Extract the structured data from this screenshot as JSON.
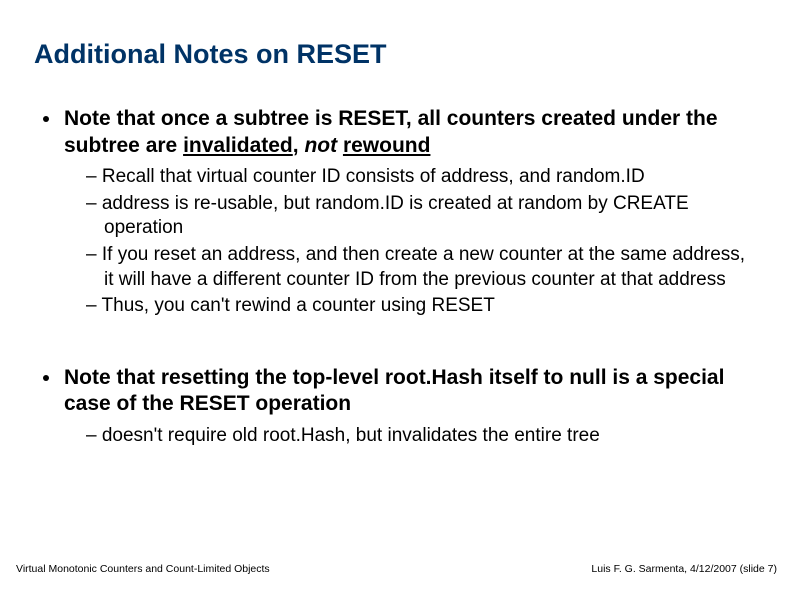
{
  "title": "Additional Notes on RESET",
  "bullets": {
    "b1": {
      "pre": "Note that once a subtree is RESET, all counters created under the subtree are ",
      "u1": "invalidated",
      "mid": ", ",
      "i1": "not",
      "sp": " ",
      "u2": "rewound"
    },
    "b1_sub": {
      "s1": "Recall that virtual counter ID consists of address, and random.ID",
      "s2": "address is re-usable, but random.ID is created at random by CREATE operation",
      "s3": "If you reset an address, and then create a new counter at the same address, it will have a different counter ID from the previous counter at that address",
      "s4": "Thus, you can't rewind a counter using RESET"
    },
    "b2": "Note that resetting the top-level root.Hash itself to null is a special case of the RESET operation",
    "b2_sub": {
      "s1": "doesn't require old root.Hash, but invalidates the entire tree"
    }
  },
  "footer": {
    "left": "Virtual Monotonic Counters and Count-Limited Objects",
    "right": "Luis F. G. Sarmenta, 4/12/2007 (slide 7)"
  }
}
